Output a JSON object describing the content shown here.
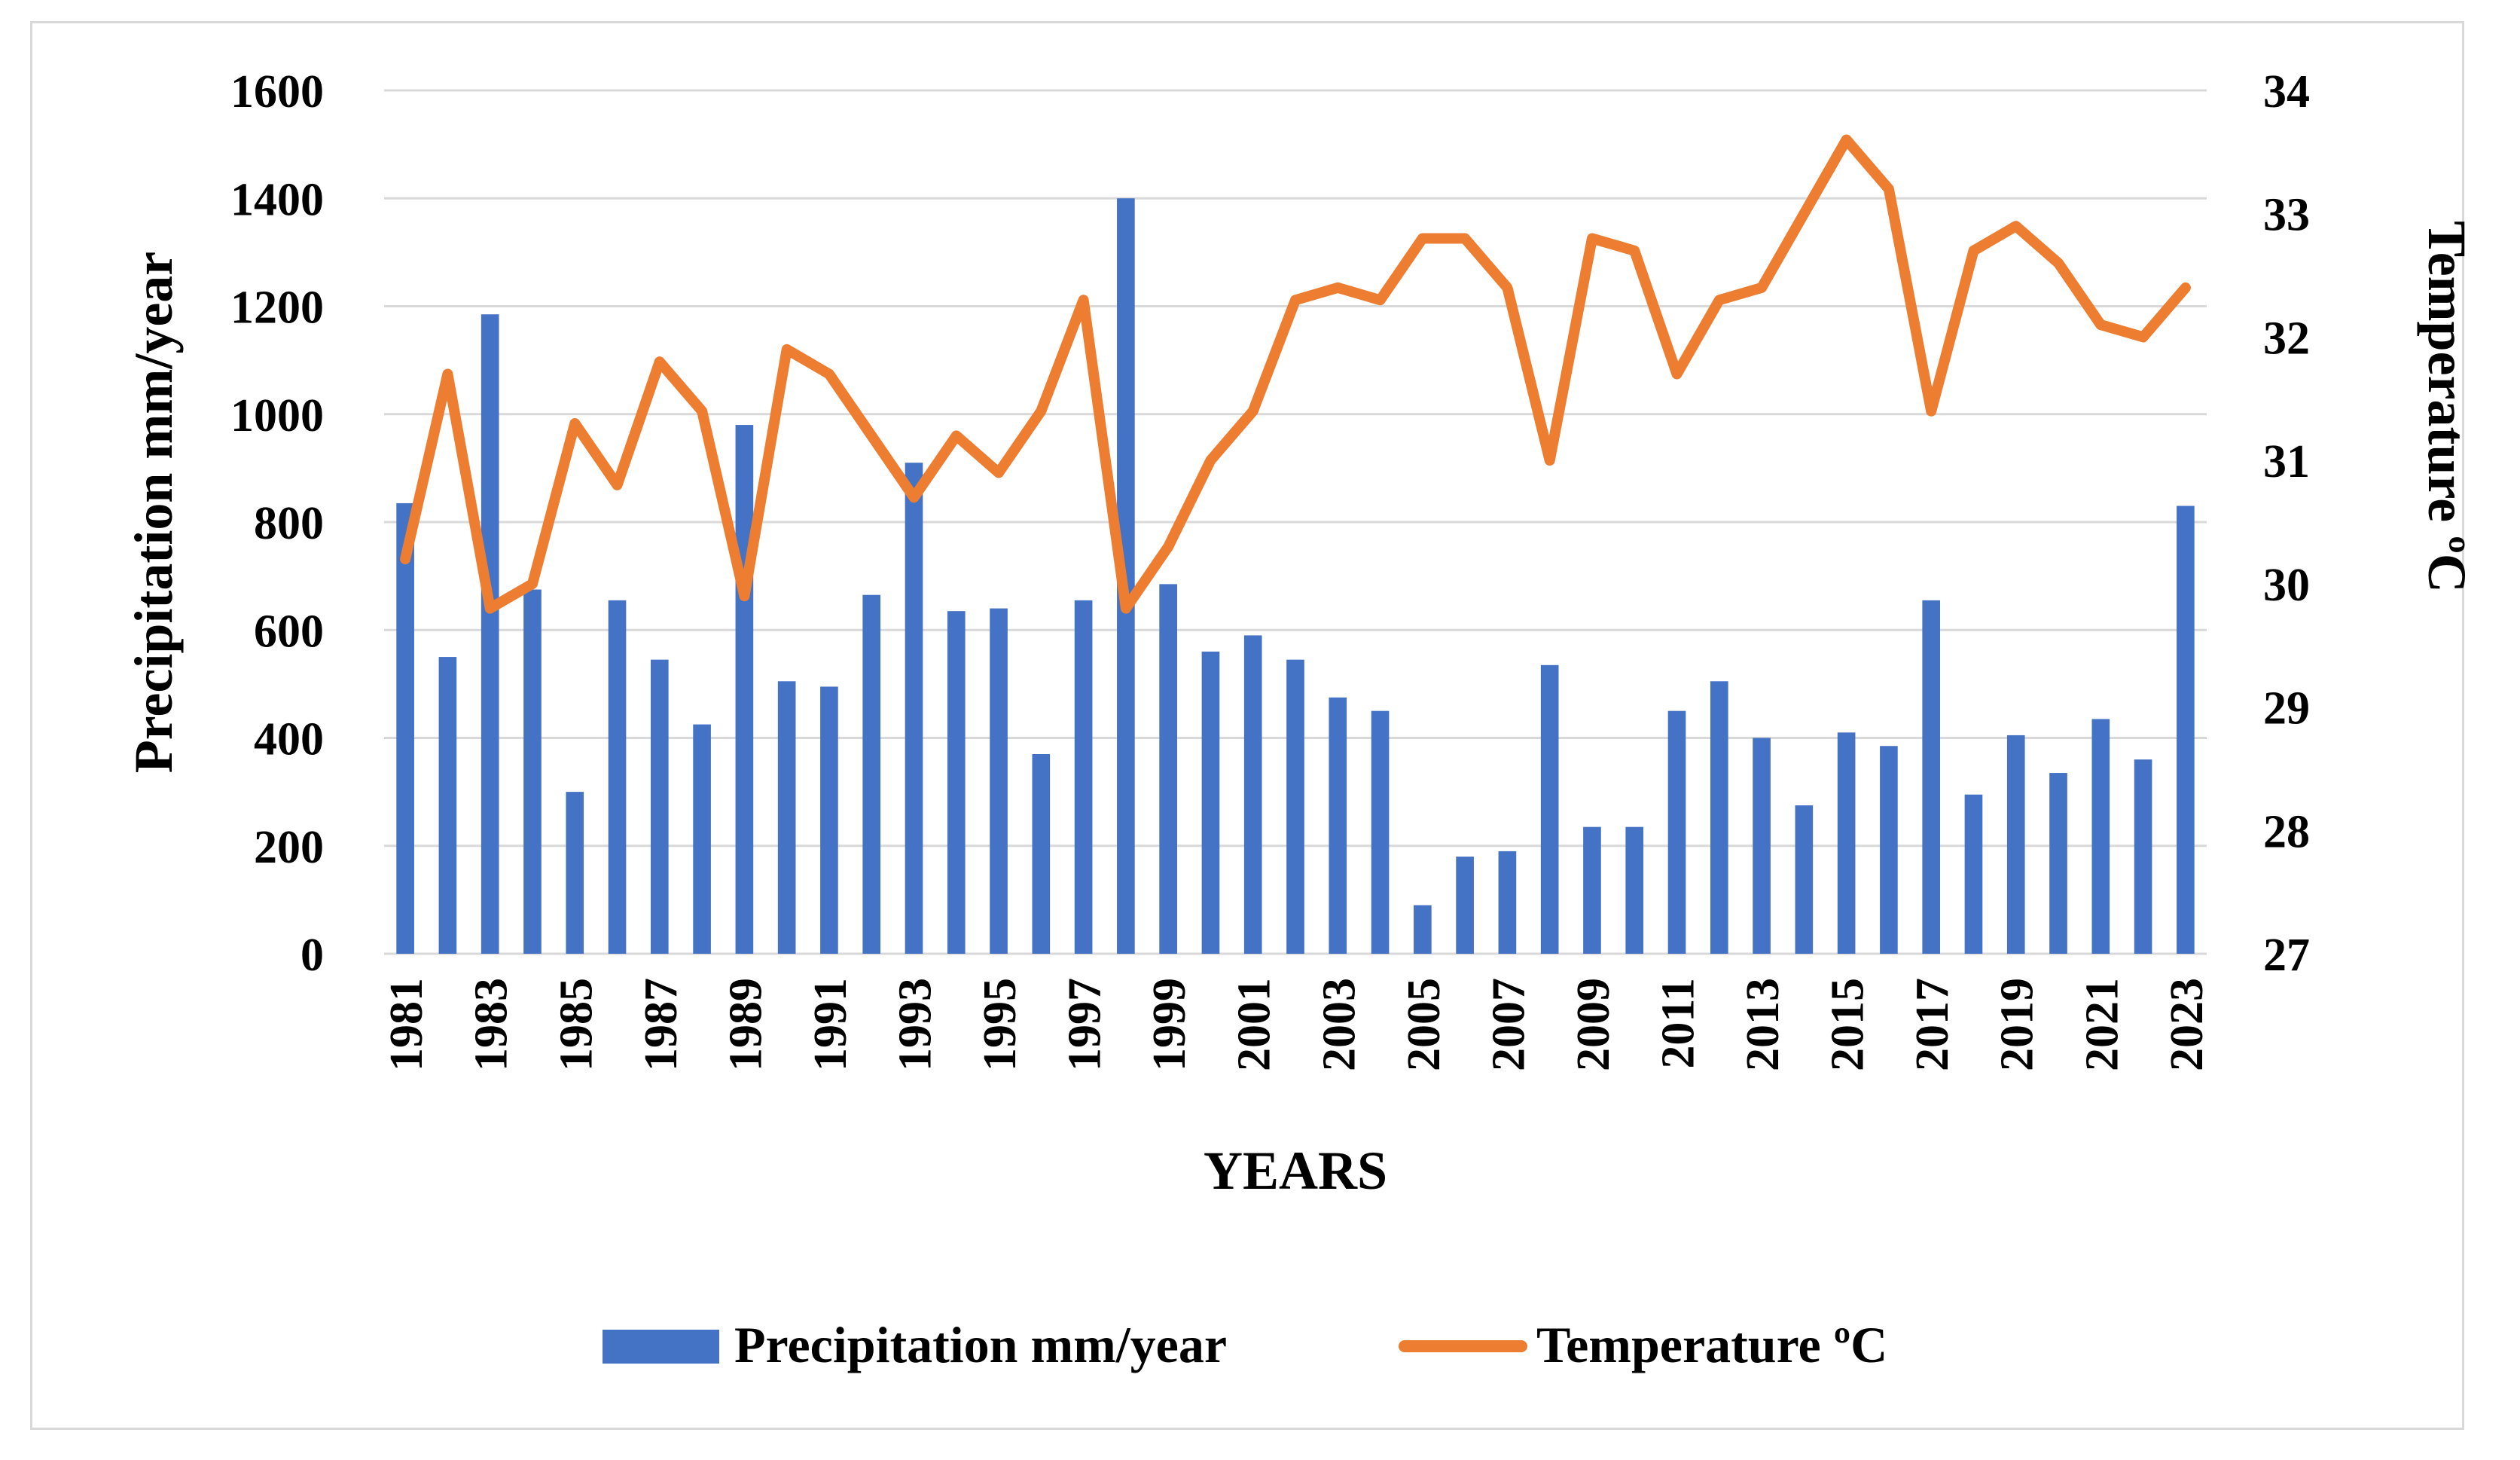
{
  "chart_data": {
    "type": "bar+line",
    "categories": [
      1981,
      1982,
      1983,
      1984,
      1985,
      1986,
      1987,
      1988,
      1989,
      1990,
      1991,
      1992,
      1993,
      1994,
      1995,
      1996,
      1997,
      1998,
      1999,
      2000,
      2001,
      2002,
      2003,
      2004,
      2005,
      2006,
      2007,
      2008,
      2009,
      2010,
      2011,
      2012,
      2013,
      2014,
      2015,
      2016,
      2017,
      2018,
      2019,
      2020,
      2021,
      2022,
      2023
    ],
    "x_tick_labels": [
      "1981",
      "1983",
      "1985",
      "1987",
      "1989",
      "1991",
      "1993",
      "1995",
      "1997",
      "1999",
      "2001",
      "2003",
      "2005",
      "2007",
      "2009",
      "2011",
      "2013",
      "2015",
      "2017",
      "2019",
      "2021",
      "2023"
    ],
    "xlabel": "YEARS",
    "series": [
      {
        "name": "Precipitation mm/year",
        "type": "bar",
        "axis": "left",
        "color": "#4472c4",
        "values": [
          835,
          550,
          1185,
          675,
          300,
          655,
          545,
          425,
          980,
          505,
          495,
          665,
          910,
          635,
          640,
          370,
          655,
          1400,
          685,
          560,
          590,
          545,
          475,
          450,
          90,
          180,
          190,
          535,
          235,
          235,
          450,
          505,
          400,
          275,
          410,
          385,
          655,
          295,
          405,
          335,
          435,
          360,
          830
        ]
      },
      {
        "name": "Temperature ºC",
        "type": "line",
        "axis": "right",
        "color": "#ed7d31",
        "values": [
          30.2,
          31.7,
          29.8,
          30.0,
          31.3,
          30.8,
          31.8,
          31.4,
          29.9,
          31.9,
          31.7,
          31.2,
          30.7,
          31.2,
          30.9,
          31.4,
          32.3,
          29.8,
          30.3,
          31.0,
          31.4,
          32.3,
          32.4,
          32.3,
          32.8,
          32.8,
          32.4,
          31.0,
          32.8,
          32.7,
          31.7,
          32.3,
          32.4,
          33.0,
          33.6,
          33.2,
          31.4,
          32.7,
          32.9,
          32.6,
          32.1,
          32.0,
          32.4
        ]
      }
    ],
    "left_axis": {
      "label": "Precipitation mm/year",
      "range": [
        0,
        1600
      ],
      "ticks": [
        "0",
        "200",
        "400",
        "600",
        "800",
        "1000",
        "1200",
        "1400",
        "1600"
      ]
    },
    "right_axis": {
      "label": "Temperature ºC",
      "range": [
        27,
        34
      ],
      "ticks": [
        "27",
        "28",
        "29",
        "30",
        "31",
        "32",
        "33",
        "34"
      ]
    },
    "grid": true,
    "legend_position": "bottom",
    "legend": {
      "items": [
        "Precipitation mm/year",
        "Temperature ºC"
      ]
    }
  }
}
